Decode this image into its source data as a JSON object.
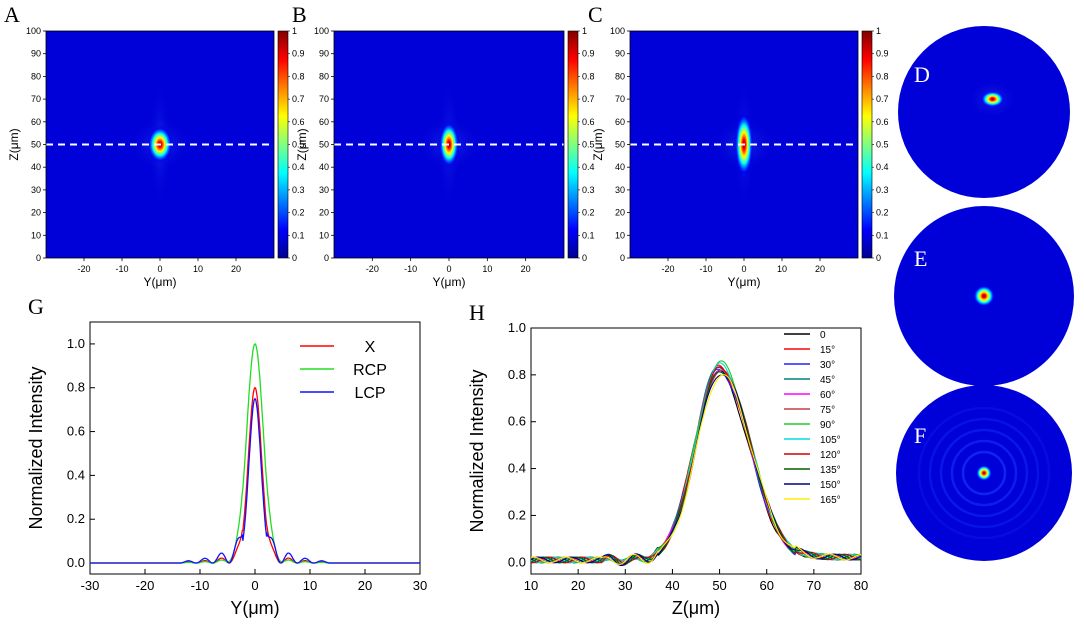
{
  "chart_data": [
    {
      "id": "A",
      "type": "heatmap",
      "panel_label": "A",
      "xlabel": "Y(μm)",
      "ylabel": "Z(μm)",
      "xlim": [
        -30,
        30
      ],
      "ylim": [
        0,
        100
      ],
      "x_ticks": [
        "-20",
        "-10",
        "0",
        "10",
        "20"
      ],
      "y_ticks": [
        "0",
        "10",
        "20",
        "30",
        "40",
        "50",
        "60",
        "70",
        "80",
        "90",
        "100"
      ],
      "colorbar_ticks": [
        "0",
        "0.1",
        "0.2",
        "0.3",
        "0.4",
        "0.5",
        "0.6",
        "0.7",
        "0.8",
        "0.9",
        "1"
      ],
      "dashed_line_z": 50,
      "focus": {
        "y": 0,
        "z": 50,
        "sigma_y_um": 1.6,
        "sigma_z_um": 4
      }
    },
    {
      "id": "B",
      "type": "heatmap",
      "panel_label": "B",
      "xlabel": "Y(μm)",
      "ylabel": "Z(μm)",
      "xlim": [
        -30,
        30
      ],
      "ylim": [
        0,
        100
      ],
      "x_ticks": [
        "-20",
        "-10",
        "0",
        "10",
        "20"
      ],
      "y_ticks": [
        "0",
        "10",
        "20",
        "30",
        "40",
        "50",
        "60",
        "70",
        "80",
        "90",
        "100"
      ],
      "colorbar_ticks": [
        "0",
        "0.1",
        "0.2",
        "0.3",
        "0.4",
        "0.5",
        "0.6",
        "0.7",
        "0.8",
        "0.9",
        "1"
      ],
      "dashed_line_z": 50,
      "focus": {
        "y": 0,
        "z": 50,
        "sigma_y_um": 1.3,
        "sigma_z_um": 5
      }
    },
    {
      "id": "C",
      "type": "heatmap",
      "panel_label": "C",
      "xlabel": "Y(μm)",
      "ylabel": "Z(μm)",
      "xlim": [
        -30,
        30
      ],
      "ylim": [
        0,
        100
      ],
      "x_ticks": [
        "-20",
        "-10",
        "0",
        "10",
        "20"
      ],
      "y_ticks": [
        "0",
        "10",
        "20",
        "30",
        "40",
        "50",
        "60",
        "70",
        "80",
        "90",
        "100"
      ],
      "colorbar_ticks": [
        "0",
        "0.1",
        "0.2",
        "0.3",
        "0.4",
        "0.5",
        "0.6",
        "0.7",
        "0.8",
        "0.9",
        "1"
      ],
      "dashed_line_z": 50,
      "focus": {
        "y": 0,
        "z": 50,
        "sigma_y_um": 1.2,
        "sigma_z_um": 7
      }
    },
    {
      "id": "D",
      "type": "heatmap",
      "panel_label": "D",
      "spot": {
        "x_frac": 0.1,
        "y_frac": -0.15,
        "size": "elliptical"
      }
    },
    {
      "id": "E",
      "type": "heatmap",
      "panel_label": "E",
      "spot": {
        "x_frac": 0.0,
        "y_frac": 0.0,
        "size": "round"
      }
    },
    {
      "id": "F",
      "type": "heatmap",
      "panel_label": "F",
      "spot": {
        "x_frac": 0.0,
        "y_frac": 0.0,
        "size": "small-with-rings"
      }
    },
    {
      "id": "G",
      "type": "line",
      "panel_label": "G",
      "xlabel": "Y(μm)",
      "ylabel": "Normalized Intensity",
      "xlim": [
        -30,
        30
      ],
      "ylim": [
        -0.05,
        1.1
      ],
      "x_ticks": [
        "-30",
        "-20",
        "-10",
        "0",
        "10",
        "20",
        "30"
      ],
      "y_ticks": [
        "0.0",
        "0.2",
        "0.4",
        "0.6",
        "0.8",
        "1.0"
      ],
      "series": [
        {
          "name": "X",
          "color": "#ff0000",
          "peak": 0.8,
          "width": 1.2,
          "side": 0.05
        },
        {
          "name": "RCP",
          "color": "#22dd22",
          "peak": 1.0,
          "width": 1.5,
          "side": 0.03
        },
        {
          "name": "LCP",
          "color": "#1010ff",
          "peak": 0.75,
          "width": 1.1,
          "side": 0.1
        }
      ]
    },
    {
      "id": "H",
      "type": "line",
      "panel_label": "H",
      "xlabel": "Z(μm)",
      "ylabel": "Normalized Intensity",
      "xlim": [
        10,
        80
      ],
      "ylim": [
        -0.05,
        1.0
      ],
      "x_ticks": [
        "10",
        "20",
        "30",
        "40",
        "50",
        "60",
        "70",
        "80"
      ],
      "y_ticks": [
        "0.0",
        "0.2",
        "0.4",
        "0.6",
        "0.8",
        "1.0"
      ],
      "series": [
        {
          "name": "0",
          "color": "#000000",
          "peak": 0.8
        },
        {
          "name": "15°",
          "color": "#ff0000",
          "peak": 0.82
        },
        {
          "name": "30°",
          "color": "#2020ff",
          "peak": 0.81
        },
        {
          "name": "45°",
          "color": "#008080",
          "peak": 0.83
        },
        {
          "name": "60°",
          "color": "#ff00ff",
          "peak": 0.82
        },
        {
          "name": "75°",
          "color": "#c04040",
          "peak": 0.81
        },
        {
          "name": "90°",
          "color": "#22cc22",
          "peak": 0.84
        },
        {
          "name": "105°",
          "color": "#00dddd",
          "peak": 0.83
        },
        {
          "name": "120°",
          "color": "#d00000",
          "peak": 0.82
        },
        {
          "name": "135°",
          "color": "#006000",
          "peak": 0.81
        },
        {
          "name": "150°",
          "color": "#000080",
          "peak": 0.8
        },
        {
          "name": "165°",
          "color": "#ffee00",
          "peak": 0.79
        }
      ]
    }
  ]
}
